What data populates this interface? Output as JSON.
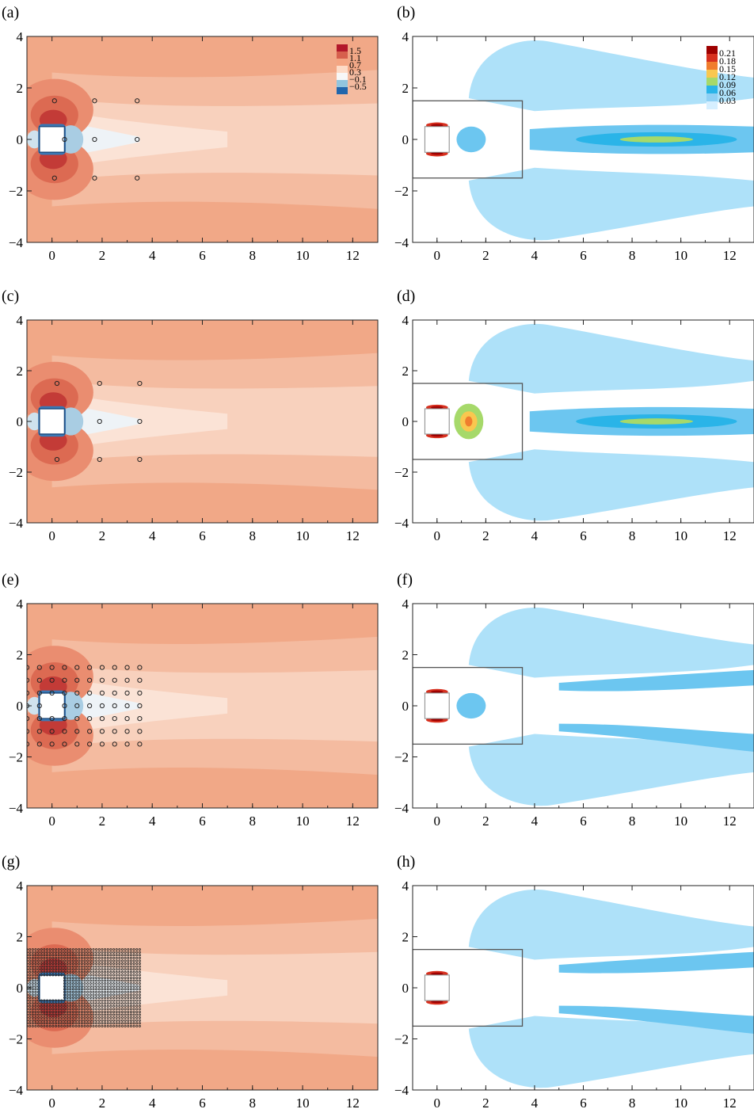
{
  "figure": {
    "panels": [
      {
        "id": "a",
        "label": "(a)",
        "kind": "mean",
        "probes": "sparse",
        "colorbar": true
      },
      {
        "id": "b",
        "label": "(b)",
        "kind": "fluct",
        "level": 1,
        "colorbar": true
      },
      {
        "id": "c",
        "label": "(c)",
        "kind": "mean",
        "probes": "sparse2",
        "colorbar": false
      },
      {
        "id": "d",
        "label": "(d)",
        "kind": "fluct",
        "level": 2,
        "colorbar": false
      },
      {
        "id": "e",
        "label": "(e)",
        "kind": "mean",
        "probes": "medium",
        "colorbar": false
      },
      {
        "id": "f",
        "label": "(f)",
        "kind": "fluct",
        "level": 3,
        "colorbar": false
      },
      {
        "id": "g",
        "label": "(g)",
        "kind": "mean",
        "probes": "dense",
        "colorbar": false
      },
      {
        "id": "h",
        "label": "(h)",
        "kind": "fluct",
        "level": 4,
        "colorbar": false
      }
    ]
  },
  "chart_data": [
    {
      "type": "heatmap",
      "panel": "(a)",
      "title": "",
      "xlabel": "",
      "ylabel": "",
      "xlim": [
        -1,
        13
      ],
      "ylim": [
        -4,
        4
      ],
      "xticks": [
        "0",
        "2",
        "4",
        "6",
        "8",
        "10",
        "12"
      ],
      "yticks": [
        "−4",
        "−2",
        "0",
        "2",
        "4"
      ],
      "colorbar": {
        "levels": [
          "1.5",
          "1.1",
          "0.7",
          "0.3",
          "−0.1",
          "−0.5"
        ],
        "colors": [
          "#b2182b",
          "#d6604d",
          "#f4a582",
          "#fddbc7",
          "#f7f7f7",
          "#92c5de",
          "#2166ac"
        ]
      },
      "probes": [
        [
          0.1,
          1.5
        ],
        [
          1.7,
          1.5
        ],
        [
          3.4,
          1.5
        ],
        [
          1.7,
          0
        ],
        [
          3.4,
          0
        ],
        [
          0.1,
          -1.5
        ],
        [
          1.7,
          -1.5
        ],
        [
          3.4,
          -1.5
        ],
        [
          0.5,
          0
        ]
      ]
    },
    {
      "type": "heatmap",
      "panel": "(b)",
      "title": "",
      "xlabel": "",
      "ylabel": "",
      "xlim": [
        -1,
        13
      ],
      "ylim": [
        -4,
        4
      ],
      "xticks": [
        "0",
        "2",
        "4",
        "6",
        "8",
        "10",
        "12"
      ],
      "yticks": [
        "−4",
        "−2",
        "0",
        "2",
        "4"
      ],
      "colorbar": {
        "levels": [
          "0.21",
          "0.18",
          "0.15",
          "0.12",
          "0.09",
          "0.06",
          "0.03"
        ],
        "colors": [
          "#9e0000",
          "#d7301f",
          "#f07d2d",
          "#f9c74f",
          "#a6d96a",
          "#2ab4e8",
          "#8fd0f4",
          "#d6efff"
        ]
      },
      "box": {
        "x": [
          -1,
          3.5
        ],
        "y": [
          -1.5,
          1.5
        ]
      }
    },
    {
      "type": "heatmap",
      "panel": "(c)",
      "title": "",
      "xlabel": "",
      "ylabel": "",
      "xlim": [
        -1,
        13
      ],
      "ylim": [
        -4,
        4
      ],
      "xticks": [
        "0",
        "2",
        "4",
        "6",
        "8",
        "10",
        "12"
      ],
      "yticks": [
        "−4",
        "−2",
        "0",
        "2",
        "4"
      ],
      "probes": [
        [
          0.2,
          1.5
        ],
        [
          1.9,
          1.5
        ],
        [
          3.5,
          1.5
        ],
        [
          1.9,
          0
        ],
        [
          3.5,
          0
        ],
        [
          0.2,
          -1.5
        ],
        [
          1.9,
          -1.5
        ],
        [
          3.5,
          -1.5
        ]
      ]
    },
    {
      "type": "heatmap",
      "panel": "(d)",
      "title": "",
      "xlabel": "",
      "ylabel": "",
      "xlim": [
        -1,
        13
      ],
      "ylim": [
        -4,
        4
      ],
      "xticks": [
        "0",
        "2",
        "4",
        "6",
        "8",
        "10",
        "12"
      ],
      "yticks": [
        "−4",
        "−2",
        "0",
        "2",
        "4"
      ],
      "box": {
        "x": [
          -1,
          3.5
        ],
        "y": [
          -1.5,
          1.5
        ]
      }
    },
    {
      "type": "heatmap",
      "panel": "(e)",
      "title": "",
      "xlabel": "",
      "ylabel": "",
      "xlim": [
        -1,
        13
      ],
      "ylim": [
        -4,
        4
      ],
      "xticks": [
        "0",
        "2",
        "4",
        "6",
        "8",
        "10",
        "12"
      ],
      "yticks": [
        "−4",
        "−2",
        "0",
        "2",
        "4"
      ],
      "probe_grid": {
        "x": [
          -1,
          3.5
        ],
        "y": [
          -1.5,
          1.5
        ],
        "nx": 10,
        "ny": 7
      }
    },
    {
      "type": "heatmap",
      "panel": "(f)",
      "title": "",
      "xlabel": "",
      "ylabel": "",
      "xlim": [
        -1,
        13
      ],
      "ylim": [
        -4,
        4
      ],
      "xticks": [
        "0",
        "2",
        "4",
        "6",
        "8",
        "10",
        "12"
      ],
      "yticks": [
        "−4",
        "−2",
        "0",
        "2",
        "4"
      ],
      "box": {
        "x": [
          -1,
          3.5
        ],
        "y": [
          -1.5,
          1.5
        ]
      }
    },
    {
      "type": "heatmap",
      "panel": "(g)",
      "title": "",
      "xlabel": "",
      "ylabel": "",
      "xlim": [
        -1,
        13
      ],
      "ylim": [
        -4,
        4
      ],
      "xticks": [
        "0",
        "2",
        "4",
        "6",
        "8",
        "10",
        "12"
      ],
      "yticks": [
        "−4",
        "−2",
        "0",
        "2",
        "4"
      ],
      "probe_grid": {
        "x": [
          -1,
          3.5
        ],
        "y": [
          -1.5,
          1.5
        ],
        "nx": 40,
        "ny": 28
      }
    },
    {
      "type": "heatmap",
      "panel": "(h)",
      "title": "",
      "xlabel": "",
      "ylabel": "",
      "xlim": [
        -1,
        13
      ],
      "ylim": [
        -4,
        4
      ],
      "xticks": [
        "0",
        "2",
        "4",
        "6",
        "8",
        "10",
        "12"
      ],
      "yticks": [
        "−4",
        "−2",
        "0",
        "2",
        "4"
      ],
      "box": {
        "x": [
          -1,
          3.5
        ],
        "y": [
          -1.5,
          1.5
        ]
      }
    }
  ]
}
